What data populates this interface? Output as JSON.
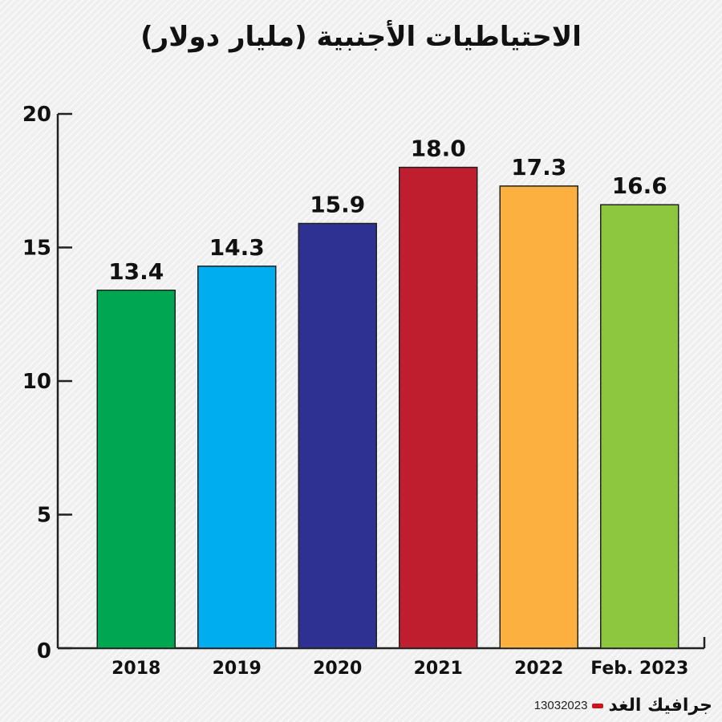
{
  "chart_data": {
    "type": "bar",
    "title": "الاحتياطيات الأجنبية (مليار دولار)",
    "categories": [
      "2018",
      "2019",
      "2020",
      "2021",
      "2022",
      "Feb. 2023"
    ],
    "values": [
      13.4,
      14.3,
      15.9,
      18.0,
      17.3,
      16.6
    ],
    "value_labels": [
      "13.4",
      "14.3",
      "15.9",
      "18.0",
      "17.3",
      "16.6"
    ],
    "colors": [
      "#00a651",
      "#00aeef",
      "#2e3192",
      "#be1e2d",
      "#fbb040",
      "#8dc63f"
    ],
    "ylim": [
      0,
      20
    ],
    "yticks": [
      0,
      5,
      10,
      15,
      20
    ],
    "grid": false,
    "legend": "none"
  },
  "footer": {
    "brand": "جرافيك الغد",
    "code": "13032023"
  }
}
